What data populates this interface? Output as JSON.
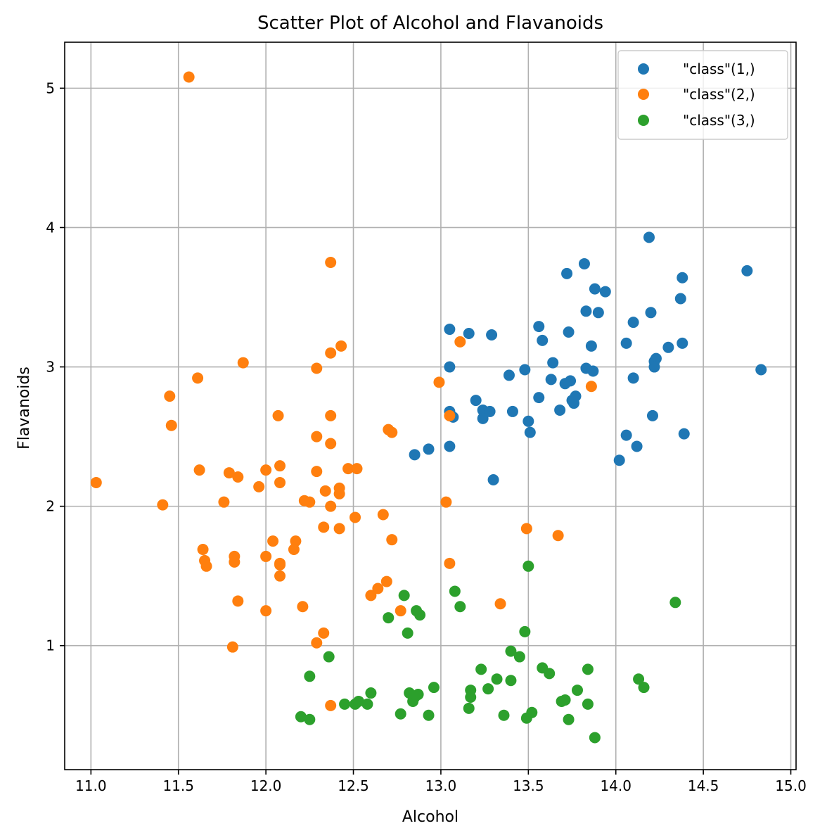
{
  "chart_data": {
    "type": "scatter",
    "title": "Scatter Plot of Alcohol and Flavanoids",
    "xlabel": "Alcohol",
    "ylabel": "Flavanoids",
    "xlim": [
      10.85,
      15.03
    ],
    "ylim": [
      0.11,
      5.33
    ],
    "xticks": [
      11.0,
      11.5,
      12.0,
      12.5,
      13.0,
      13.5,
      14.0,
      14.5,
      15.0
    ],
    "xtick_labels": [
      "11.0",
      "11.5",
      "12.0",
      "12.5",
      "13.0",
      "13.5",
      "14.0",
      "14.5",
      "15.0"
    ],
    "yticks": [
      1,
      2,
      3,
      4,
      5
    ],
    "ytick_labels": [
      "1",
      "2",
      "3",
      "4",
      "5"
    ],
    "grid": true,
    "legend_position": "top-right",
    "series": [
      {
        "name": "\"class\"(1,)",
        "color": "#1f77b4",
        "points": [
          [
            14.23,
            3.06
          ],
          [
            13.2,
            2.76
          ],
          [
            13.16,
            3.24
          ],
          [
            14.37,
            3.49
          ],
          [
            13.24,
            2.69
          ],
          [
            14.2,
            3.39
          ],
          [
            14.39,
            2.52
          ],
          [
            14.06,
            2.51
          ],
          [
            14.83,
            2.98
          ],
          [
            13.86,
            3.15
          ],
          [
            14.1,
            3.32
          ],
          [
            14.12,
            2.43
          ],
          [
            13.75,
            2.76
          ],
          [
            14.75,
            3.69
          ],
          [
            14.38,
            3.64
          ],
          [
            13.63,
            2.91
          ],
          [
            14.3,
            3.14
          ],
          [
            13.83,
            3.4
          ],
          [
            14.19,
            3.93
          ],
          [
            13.64,
            3.03
          ],
          [
            14.06,
            3.17
          ],
          [
            12.93,
            2.41
          ],
          [
            13.71,
            2.88
          ],
          [
            12.85,
            2.37
          ],
          [
            13.5,
            2.61
          ],
          [
            13.05,
            2.68
          ],
          [
            13.39,
            2.94
          ],
          [
            13.3,
            2.19
          ],
          [
            13.87,
            2.97
          ],
          [
            14.02,
            2.33
          ],
          [
            13.73,
            3.25
          ],
          [
            13.58,
            3.19
          ],
          [
            13.68,
            2.69
          ],
          [
            13.76,
            2.74
          ],
          [
            13.51,
            2.53
          ],
          [
            13.48,
            2.98
          ],
          [
            13.28,
            2.68
          ],
          [
            13.05,
            2.43
          ],
          [
            13.07,
            2.64
          ],
          [
            14.22,
            3.04
          ],
          [
            13.56,
            3.29
          ],
          [
            13.41,
            2.68
          ],
          [
            13.88,
            3.56
          ],
          [
            13.24,
            2.63
          ],
          [
            13.05,
            3.0
          ],
          [
            14.21,
            2.65
          ],
          [
            14.38,
            3.17
          ],
          [
            13.9,
            3.39
          ],
          [
            14.1,
            2.92
          ],
          [
            13.94,
            3.54
          ],
          [
            13.05,
            3.27
          ],
          [
            13.83,
            2.99
          ],
          [
            13.82,
            3.74
          ],
          [
            13.77,
            2.79
          ],
          [
            13.74,
            2.9
          ],
          [
            13.56,
            2.78
          ],
          [
            14.22,
            3.0
          ],
          [
            13.29,
            3.23
          ],
          [
            13.72,
            3.67
          ]
        ]
      },
      {
        "name": "\"class\"(2,)",
        "color": "#ff7f0e",
        "points": [
          [
            12.37,
            0.57
          ],
          [
            12.33,
            1.09
          ],
          [
            12.64,
            1.41
          ],
          [
            13.67,
            1.79
          ],
          [
            12.37,
            3.1
          ],
          [
            12.17,
            1.75
          ],
          [
            12.37,
            2.65
          ],
          [
            13.11,
            3.18
          ],
          [
            12.37,
            2.0
          ],
          [
            13.34,
            1.3
          ],
          [
            12.21,
            1.28
          ],
          [
            12.29,
            1.02
          ],
          [
            13.86,
            2.86
          ],
          [
            13.49,
            1.84
          ],
          [
            12.99,
            2.89
          ],
          [
            11.96,
            2.14
          ],
          [
            11.66,
            1.57
          ],
          [
            13.03,
            2.03
          ],
          [
            11.84,
            1.32
          ],
          [
            12.33,
            1.85
          ],
          [
            12.7,
            2.55
          ],
          [
            12.0,
            2.26
          ],
          [
            12.72,
            2.53
          ],
          [
            12.08,
            1.58
          ],
          [
            13.05,
            1.59
          ],
          [
            11.84,
            2.21
          ],
          [
            12.67,
            1.94
          ],
          [
            12.16,
            1.69
          ],
          [
            11.65,
            1.61
          ],
          [
            11.64,
            1.69
          ],
          [
            12.08,
            1.59
          ],
          [
            12.08,
            1.5
          ],
          [
            12.0,
            1.25
          ],
          [
            12.69,
            1.46
          ],
          [
            12.29,
            2.25
          ],
          [
            11.62,
            2.26
          ],
          [
            12.47,
            2.27
          ],
          [
            11.81,
            0.99
          ],
          [
            12.29,
            2.5
          ],
          [
            12.37,
            3.75
          ],
          [
            12.29,
            2.99
          ],
          [
            12.08,
            2.17
          ],
          [
            12.6,
            1.36
          ],
          [
            12.34,
            2.11
          ],
          [
            11.82,
            1.64
          ],
          [
            12.51,
            1.92
          ],
          [
            12.42,
            1.84
          ],
          [
            12.25,
            2.03
          ],
          [
            12.72,
            1.76
          ],
          [
            12.22,
            2.04
          ],
          [
            11.61,
            2.92
          ],
          [
            11.46,
            2.58
          ],
          [
            12.52,
            2.27
          ],
          [
            11.76,
            2.03
          ],
          [
            11.41,
            2.01
          ],
          [
            12.08,
            2.29
          ],
          [
            11.03,
            2.17
          ],
          [
            11.82,
            1.6
          ],
          [
            12.42,
            2.09
          ],
          [
            12.77,
            1.25
          ],
          [
            12.0,
            1.64
          ],
          [
            11.45,
            2.79
          ],
          [
            11.56,
            5.08
          ],
          [
            12.42,
            2.13
          ],
          [
            13.05,
            2.65
          ],
          [
            11.87,
            3.03
          ],
          [
            12.07,
            2.65
          ],
          [
            12.43,
            3.15
          ],
          [
            11.79,
            2.24
          ],
          [
            12.37,
            2.45
          ],
          [
            12.04,
            1.75
          ]
        ]
      },
      {
        "name": "\"class\"(3,)",
        "color": "#2ca02c",
        "points": [
          [
            12.86,
            1.25
          ],
          [
            12.88,
            1.22
          ],
          [
            12.81,
            1.09
          ],
          [
            12.7,
            1.2
          ],
          [
            12.51,
            0.58
          ],
          [
            12.6,
            0.66
          ],
          [
            12.25,
            0.47
          ],
          [
            12.53,
            0.6
          ],
          [
            13.49,
            0.48
          ],
          [
            12.84,
            0.6
          ],
          [
            12.93,
            0.5
          ],
          [
            13.36,
            0.5
          ],
          [
            13.52,
            0.52
          ],
          [
            13.62,
            0.8
          ],
          [
            12.25,
            0.78
          ],
          [
            13.16,
            0.55
          ],
          [
            13.88,
            0.34
          ],
          [
            12.87,
            0.65
          ],
          [
            13.32,
            0.76
          ],
          [
            13.08,
            1.39
          ],
          [
            13.5,
            1.57
          ],
          [
            12.79,
            1.36
          ],
          [
            13.11,
            1.28
          ],
          [
            13.23,
            0.83
          ],
          [
            12.58,
            0.58
          ],
          [
            13.17,
            0.63
          ],
          [
            13.84,
            0.58
          ],
          [
            12.45,
            0.58
          ],
          [
            14.34,
            1.31
          ],
          [
            13.48,
            1.1
          ],
          [
            12.36,
            0.92
          ],
          [
            13.69,
            0.6
          ],
          [
            12.85,
            0.63
          ],
          [
            12.96,
            0.7
          ],
          [
            13.78,
            0.68
          ],
          [
            13.73,
            0.47
          ],
          [
            13.45,
            0.92
          ],
          [
            12.82,
            0.66
          ],
          [
            13.58,
            0.84
          ],
          [
            13.4,
            0.96
          ],
          [
            12.2,
            0.49
          ],
          [
            12.77,
            0.51
          ],
          [
            14.16,
            0.7
          ],
          [
            13.71,
            0.61
          ],
          [
            13.4,
            0.75
          ],
          [
            13.27,
            0.69
          ],
          [
            13.17,
            0.68
          ],
          [
            14.13,
            0.76
          ],
          [
            13.84,
            0.83
          ]
        ]
      }
    ]
  }
}
